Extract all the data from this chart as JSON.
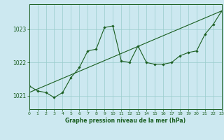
{
  "title": "Graphe pression niveau de la mer (hPa)",
  "background_color": "#cce8f0",
  "grid_color": "#99cccc",
  "line_color": "#1a5e20",
  "marker_color": "#1a5e20",
  "xlim": [
    0,
    23
  ],
  "ylim": [
    1020.6,
    1023.75
  ],
  "yticks": [
    1021,
    1022,
    1023
  ],
  "xticks": [
    0,
    1,
    2,
    3,
    4,
    5,
    6,
    7,
    8,
    9,
    10,
    11,
    12,
    13,
    14,
    15,
    16,
    17,
    18,
    19,
    20,
    21,
    22,
    23
  ],
  "series1_x": [
    0,
    1,
    2,
    3,
    4,
    5,
    6,
    7,
    8,
    9,
    10,
    11,
    12,
    13,
    14,
    15,
    16,
    17,
    18,
    19,
    20,
    21,
    22,
    23
  ],
  "series1_y": [
    1021.3,
    1021.15,
    1021.1,
    1020.95,
    1021.1,
    1021.55,
    1021.85,
    1022.35,
    1022.4,
    1023.05,
    1023.1,
    1022.05,
    1022.0,
    1022.5,
    1022.0,
    1021.95,
    1021.95,
    1022.0,
    1022.2,
    1022.3,
    1022.35,
    1022.85,
    1023.15,
    1023.55
  ],
  "trend_x": [
    0,
    23
  ],
  "trend_y": [
    1021.1,
    1023.55
  ]
}
